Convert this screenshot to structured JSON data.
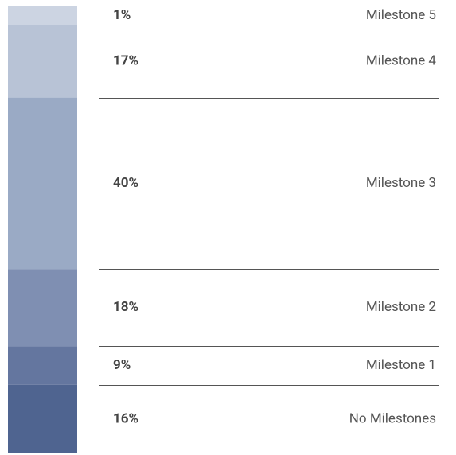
{
  "chart_data": {
    "type": "stacked-bar",
    "categories": [
      "Milestone 5",
      "Milestone 4",
      "Milestone 3",
      "Milestone 2",
      "Milestone 1",
      "No Milestones"
    ],
    "values": [
      1,
      17,
      40,
      18,
      9,
      16
    ],
    "value_labels": [
      "1%",
      "17%",
      "40%",
      "18%",
      "9%",
      "16%"
    ],
    "colors": [
      "#ccd4e2",
      "#b8c3d6",
      "#9aaac5",
      "#7f8fb2",
      "#64769f",
      "#4f6490"
    ]
  }
}
